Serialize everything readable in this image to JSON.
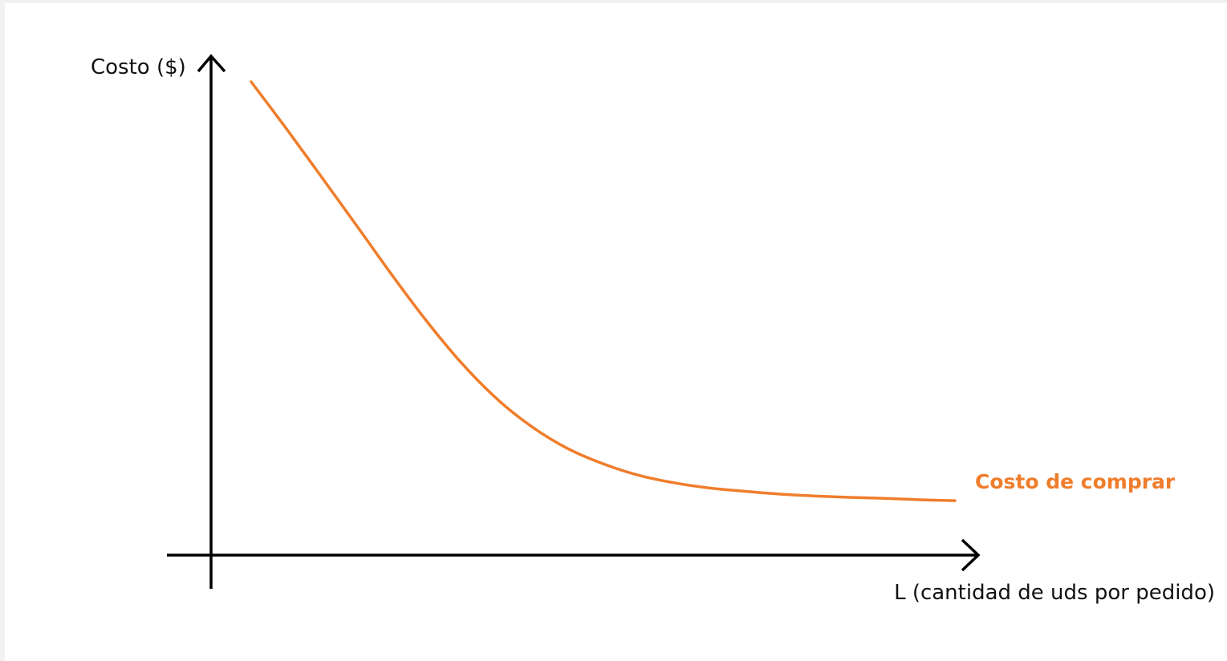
{
  "chart_data": {
    "type": "line",
    "title": "",
    "ylabel": "Costo ($)",
    "xlabel": "L (cantidad de uds por pedido)",
    "grid": false,
    "tick_labels": false,
    "xlim": [
      0,
      100
    ],
    "ylim": [
      0,
      100
    ],
    "series": [
      {
        "name": "Costo de comprar",
        "color": "#f07d2b",
        "x": [
          0,
          5,
          10,
          15,
          20,
          25,
          30,
          35,
          40,
          45,
          50,
          55,
          60,
          65,
          70,
          75,
          80,
          85,
          90,
          95,
          100
        ],
        "y": [
          100,
          90.1,
          79.9,
          69.6,
          59.2,
          49.3,
          40.4,
          32.9,
          27.0,
          22.5,
          19.3,
          16.9,
          15.3,
          14.2,
          13.5,
          12.9,
          12.5,
          12.2,
          12.0,
          11.7,
          11.5
        ]
      }
    ]
  }
}
